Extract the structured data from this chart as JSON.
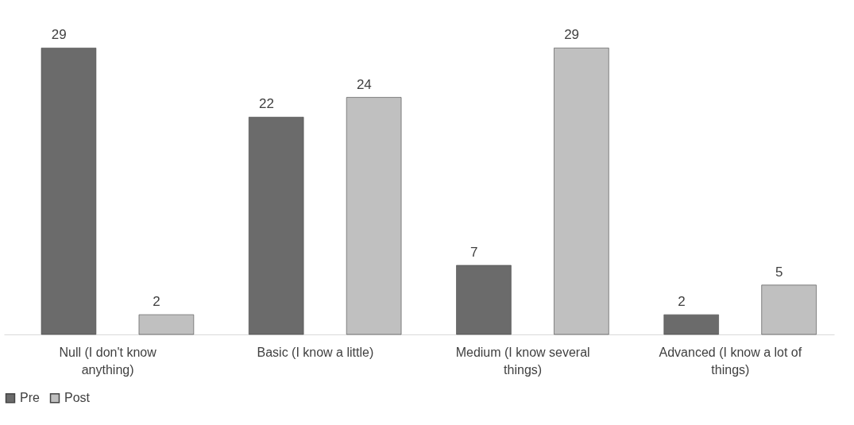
{
  "chart_data": {
    "type": "bar",
    "categories": [
      "Null (I don't know anything)",
      "Basic (I know a little)",
      "Medium (I know several things)",
      "Advanced (I know a lot of things)"
    ],
    "series": [
      {
        "name": "Pre",
        "color": "#6b6b6b",
        "values": [
          29,
          22,
          7,
          2
        ]
      },
      {
        "name": "Post",
        "color": "#c0c0c0",
        "values": [
          2,
          24,
          29,
          5
        ]
      }
    ],
    "data_labels": true,
    "grid": false,
    "legend": "bottom"
  }
}
